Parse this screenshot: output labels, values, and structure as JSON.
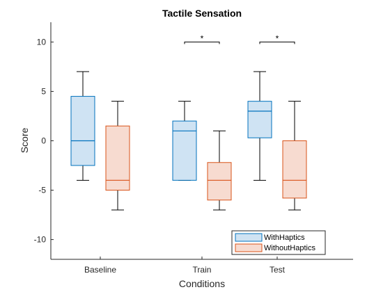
{
  "chart_data": {
    "type": "boxplot",
    "title": "Tactile Sensation",
    "xlabel": "Conditions",
    "ylabel": "Score",
    "ylim": [
      -12,
      12
    ],
    "yticks": [
      -10,
      -5,
      0,
      5,
      10
    ],
    "categories": [
      "Baseline",
      "Train",
      "Test"
    ],
    "series": [
      {
        "name": "WithHaptics",
        "stroke": "#0072BD",
        "fill": "#cfe3f3",
        "boxes": [
          {
            "min": -4,
            "q1": -2.5,
            "median": 0,
            "q3": 4.5,
            "max": 7
          },
          {
            "min": -4,
            "q1": -4,
            "median": 1,
            "q3": 2,
            "max": 4
          },
          {
            "min": -4,
            "q1": 0.3,
            "median": 3,
            "q3": 4,
            "max": 7
          }
        ]
      },
      {
        "name": "WithoutHaptics",
        "stroke": "#D95319",
        "fill": "#f7dbd0",
        "boxes": [
          {
            "min": -7,
            "q1": -5,
            "median": -4,
            "q3": 1.5,
            "max": 4
          },
          {
            "min": -7,
            "q1": -6,
            "median": -4,
            "q3": -2.2,
            "max": 1
          },
          {
            "min": -7,
            "q1": -5.8,
            "median": -4,
            "q3": 0,
            "max": 4
          }
        ]
      }
    ],
    "significance": [
      {
        "category": "Train",
        "y": 10,
        "label": "*"
      },
      {
        "category": "Test",
        "y": 10,
        "label": "*"
      }
    ],
    "legend": {
      "placement": "bottom-right"
    },
    "grid": false
  }
}
